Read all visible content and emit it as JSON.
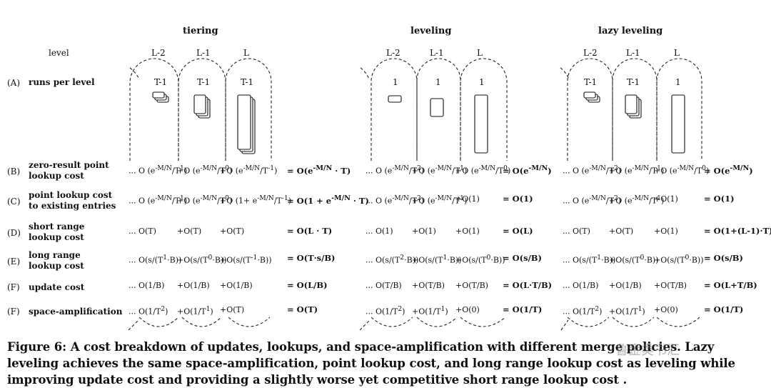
{
  "figure": {
    "policies": [
      {
        "name": "tiering",
        "counts": [
          "T-1",
          "T-1",
          "T-1"
        ]
      },
      {
        "name": "leveling",
        "counts": [
          "1",
          "1",
          "1"
        ]
      },
      {
        "name": "lazy leveling",
        "counts": [
          "T-1",
          "T-1",
          "1"
        ]
      }
    ],
    "level_header": "level",
    "level_names": [
      "L-2",
      "L-1",
      "L"
    ],
    "rows": [
      {
        "id": "(A)",
        "name": "runs per level"
      },
      {
        "id": "(B)",
        "name": "zero-result point\nlookup cost"
      },
      {
        "id": "(C)",
        "name": "point lookup cost\nto existing entries"
      },
      {
        "id": "(D)",
        "name": "short range\nlookup cost"
      },
      {
        "id": "(E)",
        "name": "long range\nlookup cost"
      },
      {
        "id": "(F)",
        "name": "update cost"
      },
      {
        "id": "(F)",
        "name": "space-amplification"
      }
    ],
    "cells": {
      "tiering": {
        "B": [
          "... O (e^{-M/N}/T^1)",
          "+O (e^{-M/N}/T^0)",
          "+O (e^{-M/N}/T^{-1})",
          "= O(e^{-M/N} · T)"
        ],
        "C": [
          "... O (e^{-M/N}/T^1)",
          "+O (e^{-M/N}/T^0)",
          "+O (1+ e^{-M/N}/T^{-1})",
          "= O(1 + e^{-M/N} · T)"
        ],
        "D": [
          "... O(T)",
          "+O(T)",
          "+O(T)",
          "= O(L · T)"
        ],
        "E": [
          "... O(s/(T^1·B))",
          "+O(s/(T^0·B))",
          "+O(s/(T^{-1}·B))",
          "= O(T·s/B)"
        ],
        "F": [
          "... O(1/B)",
          "+O(1/B)",
          "+O(1/B)",
          "= O(L/B)"
        ],
        "S": [
          "... O(1/T^2)",
          "+O(1/T^1)",
          "+O(T)",
          "= O(T)"
        ]
      },
      "leveling": {
        "B": [
          "... O (e^{-M/N}/T^2)",
          "+O (e^{-M/N}/T^1)",
          "+O (e^{-M/N}/T^0)",
          "= O(e^{-M/N})"
        ],
        "C": [
          "... O (e^{-M/N}/T^2)",
          "+O (e^{-M/N}/T^1)",
          "+O(1)",
          "= O(1)"
        ],
        "D": [
          "... O(1)",
          "+O(1)",
          "+O(1)",
          "= O(L)"
        ],
        "E": [
          "... O(s/(T^2·B))",
          "+O(s/(T^1·B))",
          "+O(s/(T^0·B))",
          "= O(s/B)"
        ],
        "F": [
          "... O(T/B)",
          "+O(T/B)",
          "+O(T/B)",
          "= O(L·T/B)"
        ],
        "S": [
          "... O(1/T^2)",
          "+O(1/T^1)",
          "+O(0)",
          "= O(1/T)"
        ]
      },
      "lazy": {
        "B": [
          "... O (e^{-M/N}/T^2)",
          "+O (e^{-M/N}/T^1)",
          "+O (e^{-M/N}/T^0)",
          "= O(e^{-M/N})"
        ],
        "C": [
          "... O (e^{-M/N}/T^2)",
          "+O (e^{-M/N}/T^1)",
          "+O(1)",
          "= O(1)"
        ],
        "D": [
          "... O(T)",
          "+O(T)",
          "+O(1)",
          "= O(1+(L-1)·T)"
        ],
        "E": [
          "... O(s/(T^1·B))",
          "+O(s/(T^0·B))",
          "+O(s/(T^0·B))",
          "= O(s/B)"
        ],
        "F": [
          "... O(1/B)",
          "+O(1/B)",
          "+O(T/B)",
          "= O(L+T/B)"
        ],
        "S": [
          "... O(1/T^2)",
          "+O(1/T^1)",
          "+O(0)",
          "= O(1/T)"
        ]
      }
    }
  },
  "caption": "Figure 6: A cost breakdown of updates, lookups, and space-amplification with different merge policies. Lazy leveling achieves the same space-amplification, point lookup cost, and long range lookup cost as leveling while improving update cost and providing a slightly worse yet competitive short range lookup cost .",
  "watermark": "鲁金类书汇"
}
